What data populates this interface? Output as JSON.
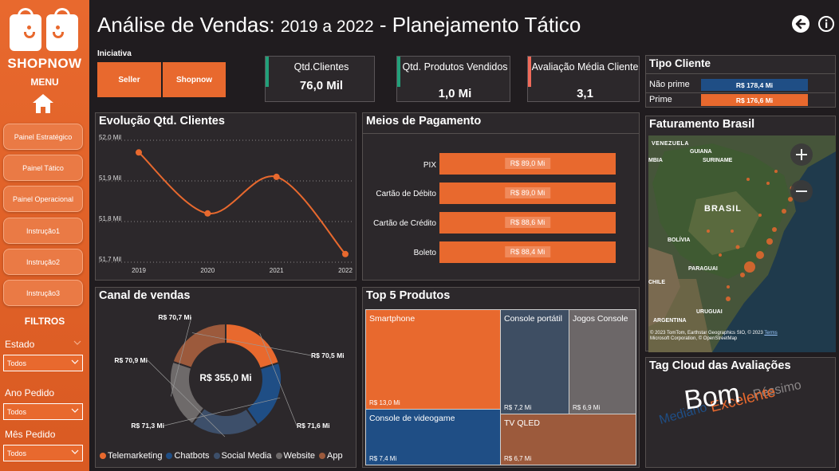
{
  "brand": "SHOPNOW",
  "sidebar": {
    "menu_label": "MENU",
    "nav": [
      "Painel Estratégico",
      "Painel Tático",
      "Painel Operacional",
      "Instrução1",
      "Instrução2",
      "Instrução3"
    ],
    "filters_title": "FILTROS",
    "filters": [
      {
        "label": "Estado",
        "value": "Todos"
      },
      {
        "label": "Ano Pedido",
        "value": "Todos"
      },
      {
        "label": "Mês Pedido",
        "value": "Todos"
      }
    ]
  },
  "header": {
    "title_main": "Análise de Vendas:",
    "title_years": "2019 a 2022",
    "title_tail": "- Planejamento Tático"
  },
  "iniciativa": {
    "label": "Iniciativa",
    "buttons": [
      "Seller",
      "Shopnow"
    ]
  },
  "kpis": [
    {
      "label": "Qtd.Clientes",
      "value": "76,0 Mil",
      "accent": "#22a07a"
    },
    {
      "label": "Qtd. Produtos Vendidos",
      "value": "1,0 Mi",
      "accent": "#22a07a"
    },
    {
      "label": "Avaliação Média Cliente",
      "value": "3,1",
      "accent": "#f06a5a"
    }
  ],
  "tipo_cliente": {
    "title": "Tipo Cliente",
    "rows": [
      {
        "label": "Não prime",
        "value": "R$ 178,4 Mi",
        "color": "#1f4e85"
      },
      {
        "label": "Prime",
        "value": "R$ 176,6 Mi",
        "color": "#e8692e"
      }
    ]
  },
  "evolucao": {
    "title": "Evolução Qtd. Clientes",
    "y_ticks": [
      "52,0 Mil",
      "51,9 Mil",
      "51,8 Mil",
      "51,7 Mil"
    ],
    "x_ticks": [
      "2019",
      "2020",
      "2021",
      "2022"
    ]
  },
  "pagamento": {
    "title": "Meios de Pagamento",
    "rows": [
      {
        "label": "PIX",
        "value": "R$ 89,0 Mi"
      },
      {
        "label": "Cartão de Débito",
        "value": "R$ 89,0 Mi"
      },
      {
        "label": "Cartão de Crédito",
        "value": "R$ 88,6 Mi"
      },
      {
        "label": "Boleto",
        "value": "R$ 88,4 Mi"
      }
    ]
  },
  "mapa": {
    "title": "Faturamento Brasil",
    "labels": [
      "VENEZUELA",
      "GUIANA",
      "SURINAME",
      "BRASIL",
      "BOLÍVIA",
      "PARAGUAI",
      "CHILE",
      "URUGUAI",
      "ARGENTINA",
      "MBIA"
    ],
    "attribution_line1": "© 2023 TomTom, Earthstar Geographics SIO, © 2023",
    "attribution_terms": "Terms",
    "attribution_line2": "Microsoft Corporation, © OpenStreetMap"
  },
  "canal": {
    "title": "Canal de vendas",
    "total": "R$ 355,0 Mi",
    "legend": [
      {
        "name": "Telemarketing",
        "color": "#e8692e"
      },
      {
        "name": "Chatbots",
        "color": "#1f4e85"
      },
      {
        "name": "Social Media",
        "color": "#3d4f6a"
      },
      {
        "name": "Website",
        "color": "#6e6a6a"
      },
      {
        "name": "App",
        "color": "#9c5a3c"
      }
    ]
  },
  "top5": {
    "title": "Top 5 Produtos",
    "items": [
      {
        "name": "Smartphone",
        "value": "R$ 13,0 Mi",
        "color": "#e8692e"
      },
      {
        "name": "Console portátil",
        "value": "R$ 7,2 Mi",
        "color": "#3e4e63"
      },
      {
        "name": "Jogos Console",
        "value": "R$ 6,9 Mi",
        "color": "#6c6768"
      },
      {
        "name": "Console de videogame",
        "value": "R$ 7,4 Mi",
        "color": "#1f4e85"
      },
      {
        "name": "TV QLED",
        "value": "R$ 6,7 Mi",
        "color": "#9c5a3c"
      }
    ]
  },
  "tagcloud": {
    "title": "Tag Cloud das Avaliações",
    "words": [
      {
        "text": "Bom",
        "color": "#ffffff"
      },
      {
        "text": "Excelente",
        "color": "#e8692e"
      },
      {
        "text": "Péssimo",
        "color": "#8a8687"
      },
      {
        "text": "Mediano",
        "color": "#1f4e85"
      }
    ]
  },
  "chart_data": [
    {
      "type": "line",
      "title": "Evolução Qtd. Clientes",
      "x": [
        "2019",
        "2020",
        "2021",
        "2022"
      ],
      "values": [
        51.97,
        51.82,
        51.91,
        51.72
      ],
      "ylim": [
        51.7,
        52.0
      ],
      "y_unit": "Mil",
      "grid": true
    },
    {
      "type": "bar",
      "title": "Meios de Pagamento",
      "categories": [
        "PIX",
        "Cartão de Débito",
        "Cartão de Crédito",
        "Boleto"
      ],
      "values": [
        89.0,
        89.0,
        88.6,
        88.4
      ],
      "value_labels": [
        "R$ 89,0 Mi",
        "R$ 89,0 Mi",
        "R$ 88,6 Mi",
        "R$ 88,4 Mi"
      ]
    },
    {
      "type": "pie",
      "title": "Canal de vendas",
      "categories": [
        "Telemarketing",
        "Chatbots",
        "Social Media",
        "Website",
        "App"
      ],
      "values": [
        71.6,
        71.3,
        70.9,
        70.7,
        70.5
      ],
      "value_labels": [
        "R$ 71,6 Mi",
        "R$ 71,3 Mi",
        "R$ 70,9 Mi",
        "R$ 70,7 Mi",
        "R$ 70,5 Mi"
      ],
      "total": "R$ 355,0 Mi"
    },
    {
      "type": "bar",
      "title": "Tipo Cliente",
      "categories": [
        "Não prime",
        "Prime"
      ],
      "values": [
        178.4,
        176.6
      ],
      "value_labels": [
        "R$ 178,4 Mi",
        "R$ 176,6 Mi"
      ]
    }
  ]
}
